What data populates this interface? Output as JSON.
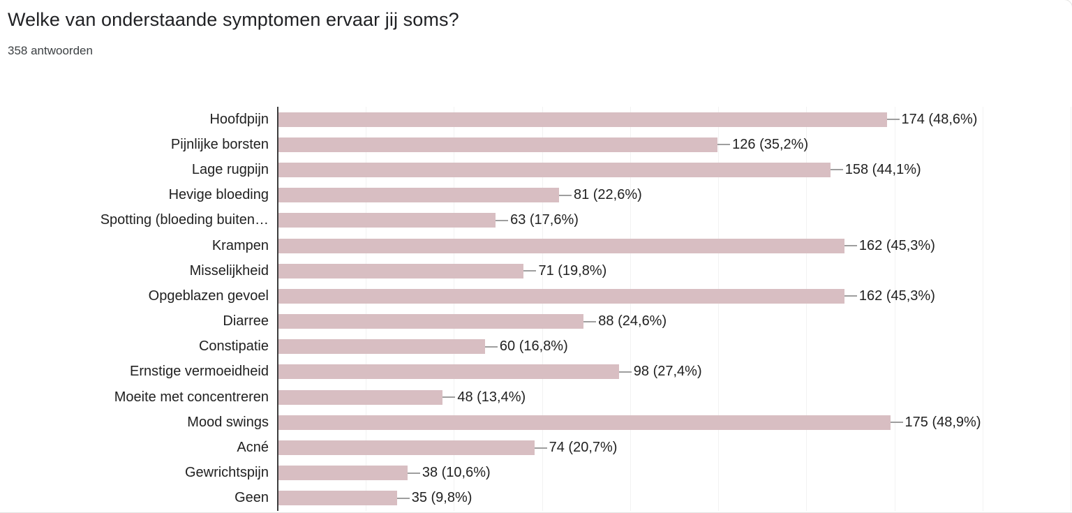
{
  "header": {
    "title": "Welke van onderstaande symptomen ervaar jij soms?",
    "subtitle": "358 antwoorden"
  },
  "chart_data": {
    "type": "bar",
    "orientation": "horizontal",
    "title": "Welke van onderstaande symptomen ervaar jij soms?",
    "subtitle": "358 antwoorden",
    "total_responses": 358,
    "categories": [
      "Hoofdpijn",
      "Pijnlijke borsten",
      "Lage rugpijn",
      "Hevige bloeding",
      "Spotting (bloeding buiten…",
      "Krampen",
      "Misselijkheid",
      "Opgeblazen gevoel",
      "Diarree",
      "Constipatie",
      "Ernstige vermoeidheid",
      "Moeite met concentreren",
      "Mood swings",
      "Acné",
      "Gewrichtspijn",
      "Geen"
    ],
    "values": [
      174,
      126,
      158,
      81,
      63,
      162,
      71,
      162,
      88,
      60,
      98,
      48,
      175,
      74,
      38,
      35
    ],
    "percentages": [
      48.6,
      35.2,
      44.1,
      22.6,
      17.6,
      45.3,
      19.8,
      45.3,
      24.6,
      16.8,
      27.4,
      13.4,
      48.9,
      20.7,
      10.6,
      9.8
    ],
    "value_labels": [
      "174 (48,6%)",
      "126 (35,2%)",
      "158 (44,1%)",
      "81 (22,6%)",
      "63 (17,6%)",
      "162 (45,3%)",
      "71 (19,8%)",
      "162 (45,3%)",
      "88 (24,6%)",
      "60 (16,8%)",
      "98 (27,4%)",
      "48 (13,4%)",
      "175 (48,9%)",
      "74 (20,7%)",
      "38 (10,6%)",
      "35 (9,8%)"
    ],
    "xlim": [
      0,
      225
    ],
    "gridline_step": 25,
    "grid": true,
    "legend": false,
    "colors": {
      "bar": "#d8bec2",
      "axis": "#3c3c3c",
      "gridline": "#f2f2f2",
      "connector": "#9e9e9e",
      "text": "#212121",
      "border": "#e4e4e2"
    }
  }
}
